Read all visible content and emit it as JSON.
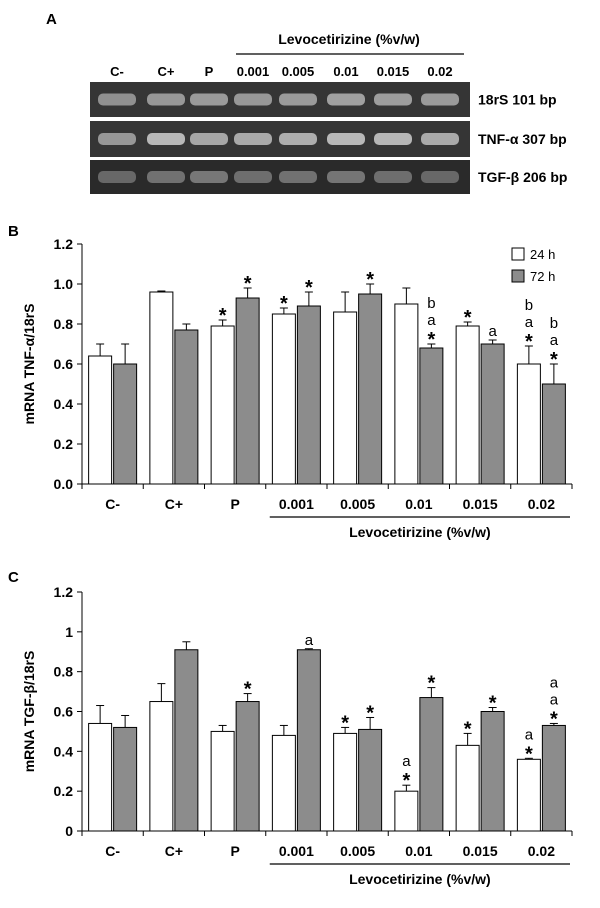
{
  "panel_a": {
    "label": "A",
    "treatment_label": "Levocetirizine (%v/w)",
    "lanes": [
      "C-",
      "C+",
      "P",
      "0.001",
      "0.005",
      "0.01",
      "0.015",
      "0.02"
    ],
    "gels": [
      {
        "name": "18rS 101 bp",
        "band_intensity": [
          0.55,
          0.6,
          0.62,
          0.6,
          0.62,
          0.66,
          0.64,
          0.62
        ]
      },
      {
        "name": "TNF-α 307 bp",
        "band_intensity": [
          0.6,
          0.82,
          0.7,
          0.72,
          0.74,
          0.82,
          0.8,
          0.72
        ]
      },
      {
        "name": "TGF-β 206 bp",
        "band_intensity": [
          0.3,
          0.36,
          0.4,
          0.34,
          0.36,
          0.38,
          0.34,
          0.3
        ]
      }
    ]
  },
  "chart_data": [
    {
      "panel": "B",
      "type": "bar",
      "ylabel": "mRNA TNF-α/18rS",
      "ylim": [
        0,
        1.2
      ],
      "yticks": [
        "0.0",
        "0.2",
        "0.4",
        "0.6",
        "0.8",
        "1.0",
        "1.2"
      ],
      "categories": [
        "C-",
        "C+",
        "P",
        "0.001",
        "0.005",
        "0.01",
        "0.015",
        "0.02"
      ],
      "xgroup_label": "Levocetirizine (%v/w)",
      "legend_position": "top-right",
      "series": [
        {
          "name": "24 h",
          "color": "#ffffff",
          "values": [
            0.64,
            0.96,
            0.79,
            0.85,
            0.86,
            0.9,
            0.79,
            0.6
          ],
          "errors": [
            0.06,
            0.005,
            0.03,
            0.03,
            0.1,
            0.08,
            0.02,
            0.09
          ],
          "annotations": [
            "",
            "",
            "*",
            "*",
            "",
            "",
            "*",
            "b\na\n*"
          ]
        },
        {
          "name": "72 h",
          "color": "#8c8c8c",
          "values": [
            0.6,
            0.77,
            0.93,
            0.89,
            0.95,
            0.68,
            0.7,
            0.5
          ],
          "errors": [
            0.1,
            0.03,
            0.05,
            0.07,
            0.05,
            0.02,
            0.02,
            0.1
          ],
          "annotations": [
            "",
            "",
            "*",
            "*",
            "*",
            "b\na\n*",
            "a",
            "b\na\n*"
          ]
        }
      ]
    },
    {
      "panel": "C",
      "type": "bar",
      "ylabel": "mRNA TGF-β/18rS",
      "ylim": [
        0,
        1.2
      ],
      "yticks": [
        "0",
        "0.2",
        "0.4",
        "0.6",
        "0.8",
        "1",
        "1.2"
      ],
      "categories": [
        "C-",
        "C+",
        "P",
        "0.001",
        "0.005",
        "0.01",
        "0.015",
        "0.02"
      ],
      "xgroup_label": "Levocetirizine (%v/w)",
      "series": [
        {
          "name": "24 h",
          "color": "#ffffff",
          "values": [
            0.54,
            0.65,
            0.5,
            0.48,
            0.49,
            0.2,
            0.43,
            0.36
          ],
          "errors": [
            0.09,
            0.09,
            0.03,
            0.05,
            0.03,
            0.03,
            0.06,
            0.005
          ],
          "annotations": [
            "",
            "",
            "",
            "",
            "*",
            "a\n*",
            "*",
            "a\n*"
          ]
        },
        {
          "name": "72 h",
          "color": "#8c8c8c",
          "values": [
            0.52,
            0.91,
            0.65,
            0.91,
            0.51,
            0.67,
            0.6,
            0.53
          ],
          "errors": [
            0.06,
            0.04,
            0.04,
            0.005,
            0.06,
            0.05,
            0.02,
            0.01
          ],
          "annotations": [
            "",
            "",
            "*",
            "a",
            "*",
            "*",
            "*",
            "a\na\n*"
          ]
        }
      ]
    }
  ]
}
